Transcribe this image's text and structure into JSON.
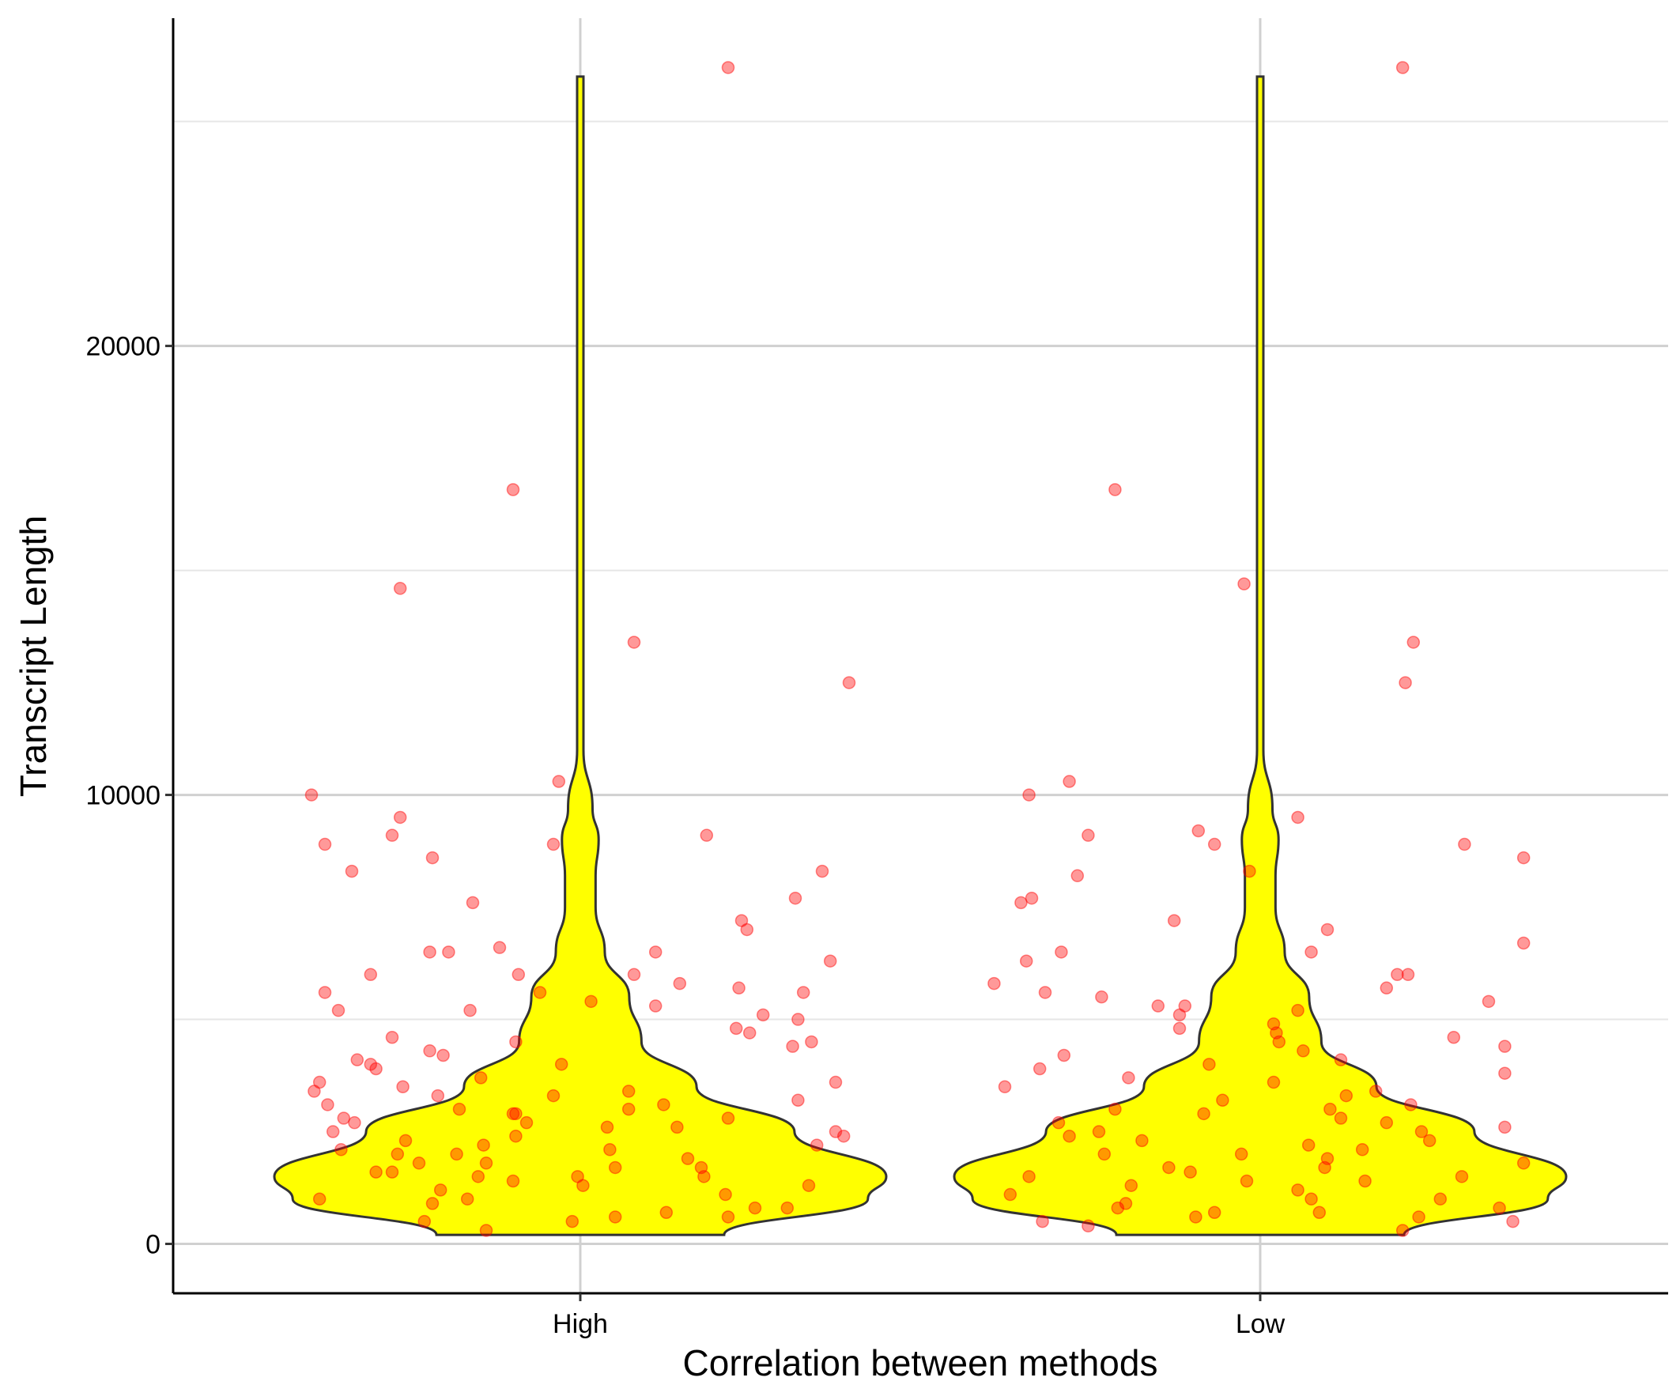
{
  "chart_data": {
    "type": "violin",
    "title": "",
    "xlabel": "Correlation between methods",
    "ylabel": "Transcript Length",
    "categories": [
      "High",
      "Low"
    ],
    "ylim": [
      -1100,
      27300
    ],
    "y_ticks": [
      0,
      10000,
      20000
    ],
    "y_tick_labels": [
      "0",
      "10000",
      "20000"
    ],
    "grid": "horizontal major and minor lines plus vertical lines at each category",
    "colors": {
      "violin_fill": "#FFFF00",
      "violin_outline": "#333333",
      "points": "#FF0000",
      "grid": "#D0D0D0"
    },
    "series": [
      {
        "category": "High",
        "range": [
          200,
          26200
        ],
        "density_profile": [
          [
            200,
            0.47
          ],
          [
            1000,
            0.94
          ],
          [
            1500,
            1.0
          ],
          [
            2500,
            0.7
          ],
          [
            3500,
            0.38
          ],
          [
            4500,
            0.2
          ],
          [
            5500,
            0.16
          ],
          [
            6500,
            0.08
          ],
          [
            7500,
            0.05
          ],
          [
            8200,
            0.05
          ],
          [
            9000,
            0.06
          ],
          [
            9700,
            0.04
          ],
          [
            11000,
            0.01
          ],
          [
            13000,
            0.005
          ],
          [
            16000,
            0.004
          ],
          [
            18000,
            0.003
          ],
          [
            20000,
            0.002
          ],
          [
            26000,
            0.002
          ]
        ],
        "points": [
          [
            26200,
            0.55
          ],
          [
            16800,
            -0.25
          ],
          [
            14600,
            -0.67
          ],
          [
            13400,
            0.2
          ],
          [
            12500,
            1.0
          ],
          [
            10300,
            -0.08
          ],
          [
            10000,
            -1.0
          ],
          [
            9500,
            -0.67
          ],
          [
            9100,
            0.47
          ],
          [
            9100,
            -0.7
          ],
          [
            8900,
            -0.95
          ],
          [
            8900,
            -0.1
          ],
          [
            8600,
            -0.55
          ],
          [
            8300,
            0.9
          ],
          [
            8300,
            -0.85
          ],
          [
            7700,
            0.8
          ],
          [
            7600,
            -0.4
          ],
          [
            7200,
            0.6
          ],
          [
            7000,
            0.62
          ],
          [
            6600,
            -0.3
          ],
          [
            6500,
            0.28
          ],
          [
            6500,
            -0.56
          ],
          [
            6500,
            -0.49
          ],
          [
            6300,
            0.93
          ],
          [
            6000,
            -0.78
          ],
          [
            6000,
            0.2
          ],
          [
            6000,
            -0.23
          ],
          [
            5800,
            0.37
          ],
          [
            5700,
            0.59
          ],
          [
            5600,
            -0.15
          ],
          [
            5600,
            -0.95
          ],
          [
            5600,
            0.83
          ],
          [
            5400,
            0.04
          ],
          [
            5300,
            0.28
          ],
          [
            5200,
            -0.9
          ],
          [
            5200,
            -0.41
          ],
          [
            5100,
            0.68
          ],
          [
            5000,
            0.81
          ],
          [
            4800,
            0.58
          ],
          [
            4700,
            0.63
          ],
          [
            4600,
            -0.7
          ],
          [
            4500,
            0.86
          ],
          [
            4500,
            -0.24
          ],
          [
            4400,
            0.79
          ],
          [
            4300,
            -0.56
          ],
          [
            4200,
            -0.51
          ],
          [
            4100,
            -0.83
          ],
          [
            4000,
            -0.78
          ],
          [
            4000,
            -0.07
          ],
          [
            3900,
            -0.76
          ],
          [
            3700,
            -0.37
          ],
          [
            3600,
            -0.97
          ],
          [
            3600,
            0.95
          ],
          [
            3500,
            -0.66
          ],
          [
            3400,
            -0.99
          ],
          [
            3400,
            0.18
          ],
          [
            3300,
            -0.1
          ],
          [
            3300,
            -0.53
          ],
          [
            3200,
            0.81
          ],
          [
            3100,
            -0.94
          ],
          [
            3100,
            0.31
          ],
          [
            3000,
            -0.45
          ],
          [
            3000,
            0.18
          ],
          [
            2900,
            -0.24
          ],
          [
            2900,
            -0.25
          ],
          [
            2800,
            -0.88
          ],
          [
            2800,
            0.55
          ],
          [
            2700,
            -0.84
          ],
          [
            2700,
            -0.2
          ],
          [
            2600,
            0.1
          ],
          [
            2600,
            0.36
          ],
          [
            2500,
            -0.92
          ],
          [
            2500,
            0.95
          ],
          [
            2400,
            -0.24
          ],
          [
            2400,
            0.98
          ],
          [
            2300,
            -0.65
          ],
          [
            2200,
            0.88
          ],
          [
            2200,
            -0.36
          ],
          [
            2100,
            0.11
          ],
          [
            2100,
            -0.89
          ],
          [
            2000,
            -0.46
          ],
          [
            2000,
            -0.68
          ],
          [
            1900,
            0.4
          ],
          [
            1800,
            -0.6
          ],
          [
            1800,
            -0.35
          ],
          [
            1700,
            0.13
          ],
          [
            1700,
            0.45
          ],
          [
            1600,
            -0.7
          ],
          [
            1600,
            -0.76
          ],
          [
            1500,
            -0.01
          ],
          [
            1500,
            0.46
          ],
          [
            1500,
            -0.38
          ],
          [
            1400,
            -0.25
          ],
          [
            1300,
            0.85
          ],
          [
            1300,
            0.01
          ],
          [
            1200,
            -0.52
          ],
          [
            1100,
            0.54
          ],
          [
            1000,
            -0.42
          ],
          [
            1000,
            -0.97
          ],
          [
            900,
            -0.55
          ],
          [
            800,
            0.65
          ],
          [
            800,
            0.77
          ],
          [
            700,
            0.32
          ],
          [
            600,
            0.55
          ],
          [
            600,
            0.13
          ],
          [
            500,
            -0.58
          ],
          [
            500,
            -0.03
          ],
          [
            300,
            -0.35
          ]
        ]
      },
      {
        "category": "Low",
        "range": [
          200,
          26200
        ],
        "density_profile": [
          [
            200,
            0.47
          ],
          [
            1000,
            0.94
          ],
          [
            1500,
            1.0
          ],
          [
            2500,
            0.7
          ],
          [
            3500,
            0.38
          ],
          [
            4500,
            0.2
          ],
          [
            5500,
            0.16
          ],
          [
            6500,
            0.08
          ],
          [
            7500,
            0.05
          ],
          [
            8200,
            0.05
          ],
          [
            9000,
            0.06
          ],
          [
            9700,
            0.04
          ],
          [
            11000,
            0.01
          ],
          [
            13000,
            0.005
          ],
          [
            16000,
            0.004
          ],
          [
            18000,
            0.003
          ],
          [
            20000,
            0.002
          ],
          [
            26000,
            0.002
          ]
        ],
        "points": [
          [
            26200,
            0.53
          ],
          [
            16800,
            -0.54
          ],
          [
            14700,
            -0.06
          ],
          [
            13400,
            0.57
          ],
          [
            12500,
            0.54
          ],
          [
            10300,
            -0.71
          ],
          [
            10000,
            -0.86
          ],
          [
            9500,
            0.14
          ],
          [
            9200,
            -0.23
          ],
          [
            9100,
            -0.64
          ],
          [
            8900,
            0.76
          ],
          [
            8900,
            -0.17
          ],
          [
            8600,
            0.98
          ],
          [
            8300,
            -0.04
          ],
          [
            8200,
            -0.68
          ],
          [
            7700,
            -0.85
          ],
          [
            7600,
            -0.89
          ],
          [
            7200,
            -0.32
          ],
          [
            7000,
            0.25
          ],
          [
            6700,
            0.98
          ],
          [
            6500,
            -0.74
          ],
          [
            6500,
            0.19
          ],
          [
            6300,
            -0.87
          ],
          [
            6000,
            0.51
          ],
          [
            6000,
            0.55
          ],
          [
            5800,
            -0.99
          ],
          [
            5700,
            0.47
          ],
          [
            5600,
            -0.8
          ],
          [
            5500,
            -0.59
          ],
          [
            5400,
            0.85
          ],
          [
            5300,
            -0.28
          ],
          [
            5300,
            -0.38
          ],
          [
            5200,
            0.14
          ],
          [
            5100,
            -0.3
          ],
          [
            4900,
            0.05
          ],
          [
            4800,
            -0.3
          ],
          [
            4700,
            0.06
          ],
          [
            4600,
            0.72
          ],
          [
            4500,
            0.07
          ],
          [
            4400,
            0.91
          ],
          [
            4300,
            0.16
          ],
          [
            4200,
            -0.73
          ],
          [
            4100,
            0.3
          ],
          [
            4000,
            -0.19
          ],
          [
            3900,
            -0.82
          ],
          [
            3800,
            0.91
          ],
          [
            3700,
            -0.49
          ],
          [
            3600,
            0.05
          ],
          [
            3500,
            -0.95
          ],
          [
            3400,
            0.43
          ],
          [
            3300,
            0.32
          ],
          [
            3200,
            -0.14
          ],
          [
            3100,
            0.56
          ],
          [
            3000,
            0.26
          ],
          [
            3000,
            -0.54
          ],
          [
            2900,
            -0.21
          ],
          [
            2800,
            0.3
          ],
          [
            2700,
            0.47
          ],
          [
            2700,
            -0.75
          ],
          [
            2600,
            0.91
          ],
          [
            2500,
            0.6
          ],
          [
            2500,
            -0.6
          ],
          [
            2400,
            -0.71
          ],
          [
            2300,
            0.63
          ],
          [
            2300,
            -0.44
          ],
          [
            2200,
            0.18
          ],
          [
            2100,
            0.38
          ],
          [
            2000,
            -0.07
          ],
          [
            2000,
            -0.58
          ],
          [
            1900,
            0.25
          ],
          [
            1800,
            0.98
          ],
          [
            1700,
            0.24
          ],
          [
            1700,
            -0.34
          ],
          [
            1600,
            -0.26
          ],
          [
            1500,
            0.75
          ],
          [
            1500,
            -0.86
          ],
          [
            1400,
            0.39
          ],
          [
            1400,
            -0.05
          ],
          [
            1300,
            -0.48
          ],
          [
            1200,
            0.14
          ],
          [
            1100,
            -0.93
          ],
          [
            1000,
            0.67
          ],
          [
            1000,
            0.19
          ],
          [
            900,
            -0.5
          ],
          [
            800,
            -0.53
          ],
          [
            800,
            0.89
          ],
          [
            700,
            -0.17
          ],
          [
            700,
            0.22
          ],
          [
            600,
            0.59
          ],
          [
            600,
            -0.24
          ],
          [
            500,
            0.94
          ],
          [
            500,
            -0.81
          ],
          [
            400,
            -0.64
          ],
          [
            300,
            0.53
          ]
        ]
      }
    ]
  }
}
